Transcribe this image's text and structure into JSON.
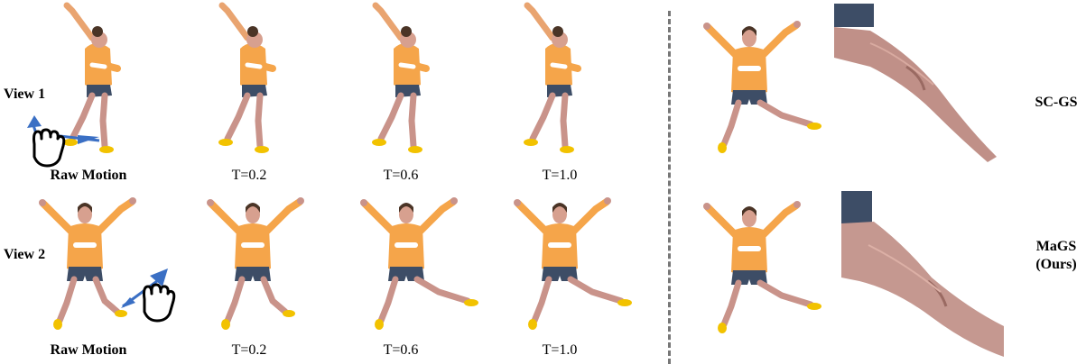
{
  "rows": {
    "view1": {
      "label": "View 1",
      "captions": [
        "Raw Motion",
        "T=0.2",
        "T=0.6",
        "T=1.0"
      ]
    },
    "view2": {
      "label": "View 2",
      "captions": [
        "Raw Motion",
        "T=0.2",
        "T=0.6",
        "T=1.0"
      ]
    }
  },
  "methods": {
    "top": "SC-GS",
    "bottom_line1": "MaGS",
    "bottom_line2": "(Ours)"
  },
  "colors": {
    "sweater": "#f5a54a",
    "sweater_shade": "#e88f2e",
    "shorts": "#3d4d66",
    "skin": "#c9938a",
    "shoe": "#f2c200",
    "hair": "#4a3426",
    "arrow": "#3a6fc4",
    "divider": "#777777"
  },
  "icons": [
    "hand-drag-icon",
    "drag-arrow-icon"
  ]
}
